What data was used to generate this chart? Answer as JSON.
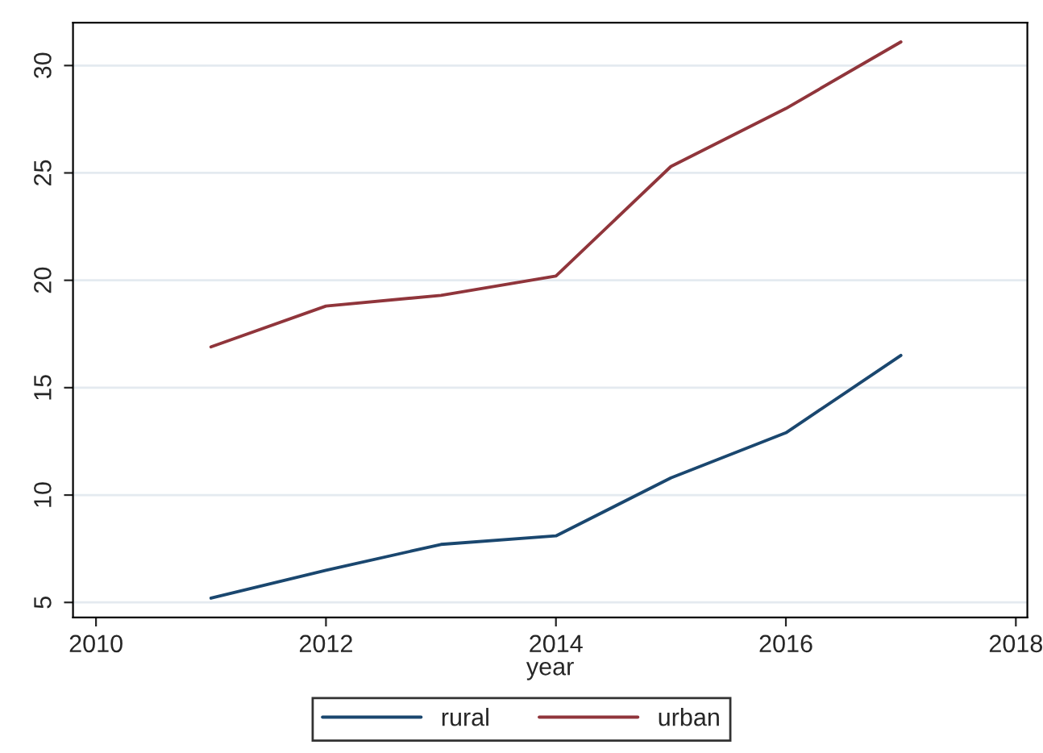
{
  "chart_data": {
    "type": "line",
    "xlabel": "year",
    "x": [
      2011,
      2012,
      2013,
      2014,
      2015,
      2016,
      2017
    ],
    "series": [
      {
        "name": "rural",
        "color": "#1a476f",
        "values": [
          5.2,
          6.5,
          7.7,
          8.1,
          10.8,
          12.9,
          16.5
        ]
      },
      {
        "name": "urban",
        "color": "#90353b",
        "values": [
          16.9,
          18.8,
          19.3,
          20.2,
          25.3,
          28.0,
          31.1
        ]
      }
    ],
    "xlim": [
      2009.8,
      2018.1
    ],
    "xticks": [
      2010,
      2012,
      2014,
      2016,
      2018
    ],
    "ylim": [
      4.3,
      32
    ],
    "yticks": [
      5,
      10,
      15,
      20,
      25,
      30
    ],
    "grid": "y",
    "legend": "bottom",
    "line_style": "solid",
    "marker": "none"
  }
}
